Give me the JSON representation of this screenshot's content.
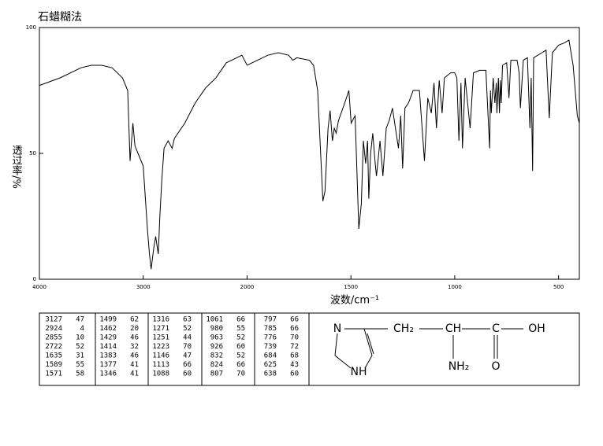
{
  "chart_data": {
    "type": "line",
    "title": "石蜡糊法",
    "x_label": "波数/cm⁻¹",
    "y_label": "透过率/%",
    "xlim": [
      4000,
      400
    ],
    "ylim": [
      0,
      100
    ],
    "xticks": [
      4000,
      3000,
      2000,
      1500,
      1000,
      500
    ],
    "yticks": [
      0,
      50,
      100
    ],
    "x_scale_break": 2000,
    "x_scale_factor": 2,
    "color": "#000000",
    "grid": false,
    "x": [
      4000,
      3800,
      3600,
      3500,
      3400,
      3300,
      3200,
      3150,
      3127,
      3100,
      3080,
      3050,
      3000,
      2960,
      2940,
      2924,
      2900,
      2880,
      2855,
      2840,
      2820,
      2800,
      2760,
      2722,
      2700,
      2600,
      2500,
      2400,
      2300,
      2200,
      2100,
      2050,
      2000,
      1950,
      1900,
      1850,
      1800,
      1780,
      1760,
      1700,
      1680,
      1660,
      1640,
      1635,
      1625,
      1610,
      1600,
      1589,
      1580,
      1571,
      1560,
      1530,
      1510,
      1499,
      1480,
      1462,
      1450,
      1440,
      1429,
      1420,
      1414,
      1405,
      1395,
      1383,
      1377,
      1360,
      1346,
      1330,
      1316,
      1300,
      1271,
      1260,
      1251,
      1240,
      1223,
      1200,
      1170,
      1146,
      1130,
      1113,
      1100,
      1088,
      1075,
      1061,
      1050,
      1020,
      1000,
      990,
      980,
      970,
      963,
      950,
      926,
      910,
      880,
      850,
      832,
      828,
      824,
      815,
      807,
      800,
      797,
      790,
      785,
      780,
      776,
      770,
      750,
      739,
      730,
      700,
      690,
      684,
      670,
      650,
      638,
      632,
      625,
      620,
      580,
      560,
      545,
      530,
      500,
      470,
      450,
      430,
      410,
      400
    ],
    "values": [
      77,
      80,
      84,
      85,
      85,
      84,
      80,
      75,
      47,
      62,
      53,
      50,
      45,
      20,
      10,
      4,
      12,
      17,
      10,
      25,
      40,
      52,
      55,
      52,
      56,
      62,
      70,
      76,
      80,
      86,
      88,
      89,
      85,
      87,
      89,
      90,
      89,
      87,
      88,
      87,
      85,
      75,
      40,
      31,
      35,
      60,
      67,
      55,
      60,
      58,
      63,
      70,
      75,
      62,
      65,
      20,
      30,
      55,
      46,
      55,
      32,
      50,
      58,
      46,
      41,
      55,
      41,
      60,
      63,
      68,
      52,
      65,
      44,
      68,
      70,
      75,
      75,
      47,
      72,
      66,
      78,
      60,
      79,
      66,
      80,
      82,
      82,
      80,
      55,
      78,
      52,
      80,
      60,
      82,
      83,
      83,
      52,
      75,
      66,
      80,
      70,
      78,
      66,
      80,
      66,
      79,
      70,
      85,
      86,
      72,
      87,
      87,
      82,
      68,
      87,
      88,
      60,
      80,
      43,
      88,
      90,
      91,
      64,
      90,
      93,
      94,
      95,
      85,
      65,
      62
    ]
  },
  "peak_table": {
    "columns": [
      [
        [
          "3127",
          "47"
        ],
        [
          "2924",
          "4"
        ],
        [
          "2855",
          "10"
        ],
        [
          "2722",
          "52"
        ],
        [
          "1635",
          "31"
        ],
        [
          "1589",
          "55"
        ],
        [
          "1571",
          "58"
        ]
      ],
      [
        [
          "1499",
          "62"
        ],
        [
          "1462",
          "20"
        ],
        [
          "1429",
          "46"
        ],
        [
          "1414",
          "32"
        ],
        [
          "1383",
          "46"
        ],
        [
          "1377",
          "41"
        ],
        [
          "1346",
          "41"
        ]
      ],
      [
        [
          "1316",
          "63"
        ],
        [
          "1271",
          "52"
        ],
        [
          "1251",
          "44"
        ],
        [
          "1223",
          "70"
        ],
        [
          "1146",
          "47"
        ],
        [
          "1113",
          "66"
        ],
        [
          "1088",
          "60"
        ]
      ],
      [
        [
          "1061",
          "66"
        ],
        [
          "980",
          "55"
        ],
        [
          "963",
          "52"
        ],
        [
          "926",
          "60"
        ],
        [
          "832",
          "52"
        ],
        [
          "824",
          "66"
        ],
        [
          "807",
          "70"
        ]
      ],
      [
        [
          "797",
          "66"
        ],
        [
          "785",
          "66"
        ],
        [
          "776",
          "70"
        ],
        [
          "739",
          "72"
        ],
        [
          "684",
          "68"
        ],
        [
          "625",
          "43"
        ],
        [
          "638",
          "60"
        ]
      ]
    ]
  },
  "structure": {
    "atoms": [
      "N",
      "NH",
      "CH₂",
      "CH",
      "NH₂",
      "C",
      "O",
      "OH"
    ]
  }
}
